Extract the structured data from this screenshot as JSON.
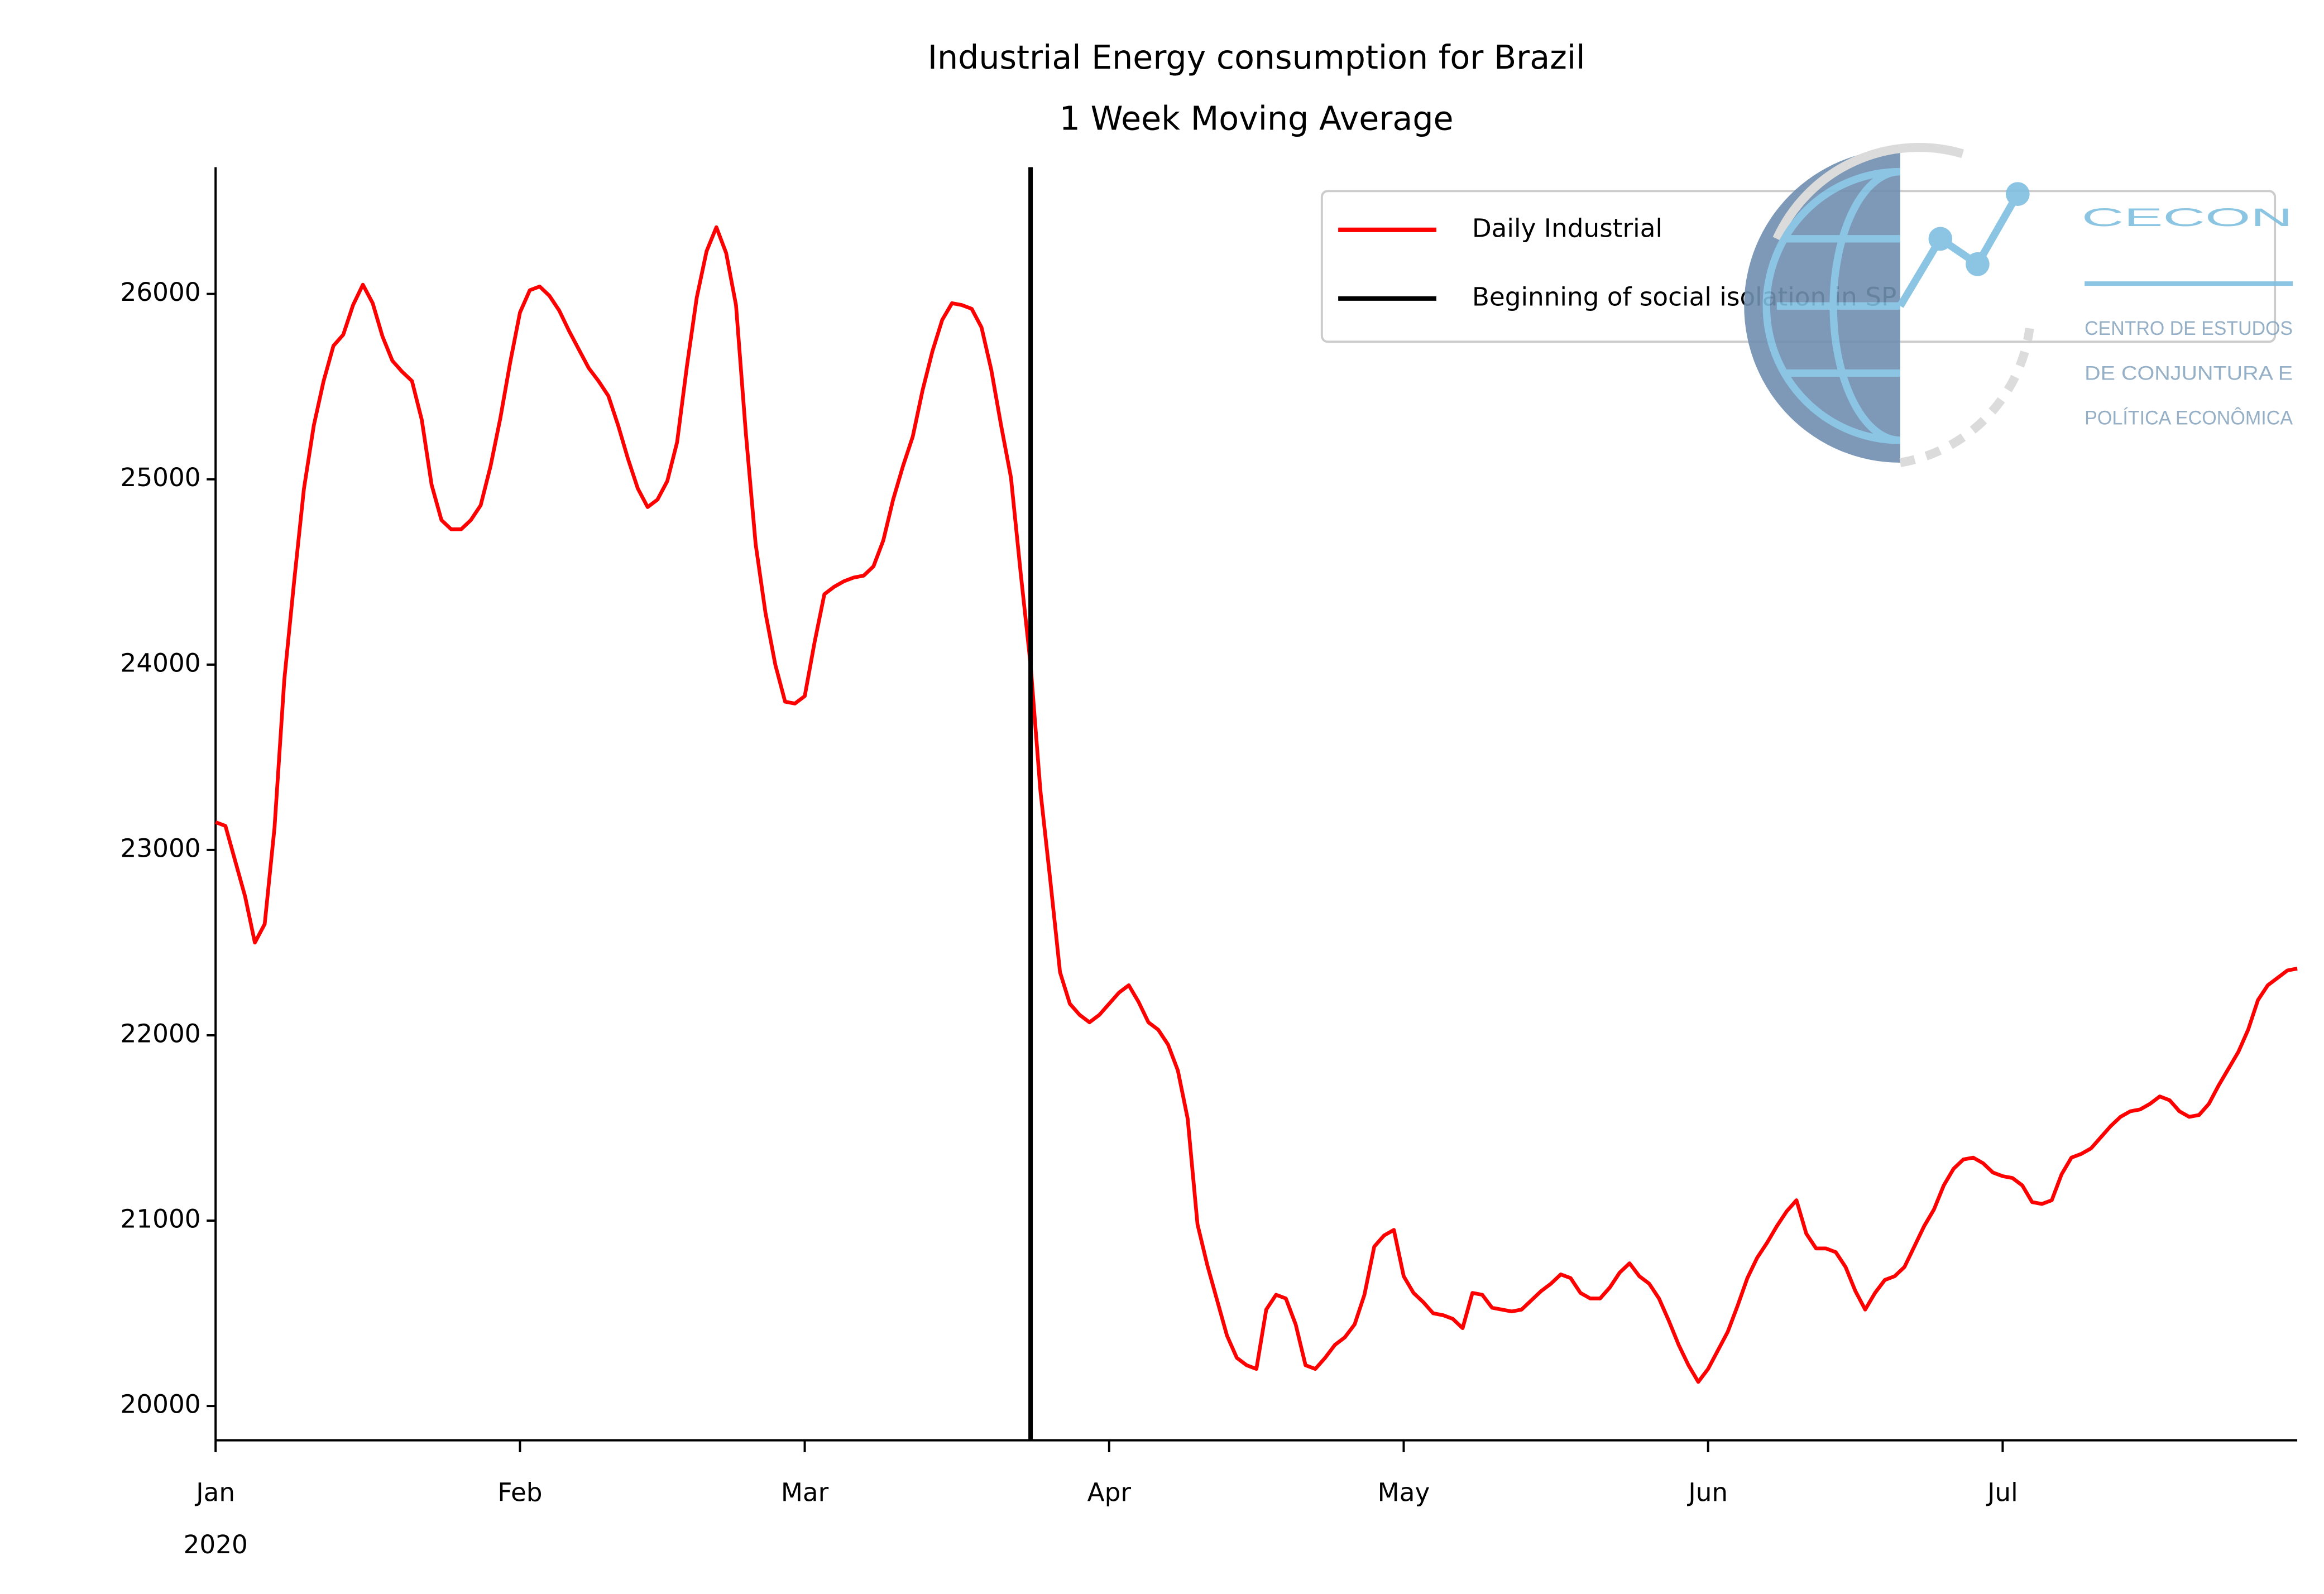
{
  "chart_data": {
    "type": "line",
    "title": "Industrial Energy consumption for Brazil",
    "subtitle": "1 Week Moving Average",
    "x": [
      0,
      1,
      2,
      3,
      4,
      5,
      6,
      7,
      8,
      9,
      10,
      11,
      12,
      13,
      14,
      15,
      16,
      17,
      18,
      19,
      20,
      21,
      22,
      23,
      24,
      25,
      26,
      27,
      28,
      29,
      30,
      31,
      32,
      33,
      34,
      35,
      36,
      37,
      38,
      39,
      40,
      41,
      42,
      43,
      44,
      45,
      46,
      47,
      48,
      49,
      50,
      51,
      52,
      53,
      54,
      55,
      56,
      57,
      58,
      59,
      60,
      61,
      62,
      63,
      64,
      65,
      66,
      67,
      68,
      69,
      70,
      71,
      72,
      73,
      74,
      75,
      76,
      77,
      78,
      79,
      80,
      81,
      82,
      83,
      84,
      85,
      86,
      87,
      88,
      89,
      90,
      91,
      92,
      93,
      94,
      95,
      96,
      97,
      98,
      99,
      100,
      101,
      102,
      103,
      104,
      105,
      106,
      107,
      108,
      109,
      110,
      111,
      112,
      113,
      114,
      115,
      116,
      117,
      118,
      119,
      120,
      121,
      122,
      123,
      124,
      125,
      126,
      127,
      128,
      129,
      130,
      131,
      132,
      133,
      134,
      135,
      136,
      137,
      138,
      139,
      140,
      141,
      142,
      143,
      144,
      145,
      146,
      147,
      148,
      149,
      150,
      151,
      152,
      153,
      154,
      155,
      156,
      157,
      158,
      159,
      160,
      161,
      162,
      163,
      164,
      165,
      166,
      167,
      168,
      169,
      170,
      171,
      172,
      173,
      174,
      175,
      176,
      177,
      178,
      179,
      180,
      181,
      182,
      183,
      184,
      185,
      186,
      187,
      188,
      189,
      190,
      191,
      192,
      193,
      194,
      195,
      196,
      197,
      198,
      199,
      200,
      201,
      202,
      203,
      204,
      205,
      206,
      207,
      208,
      209,
      210,
      211,
      212
    ],
    "series": [
      {
        "name": "Daily Industrial",
        "color": "#ff0000",
        "values": [
          23150,
          23130,
          22940,
          22750,
          22500,
          22600,
          23120,
          23920,
          24450,
          24950,
          25290,
          25530,
          25720,
          25780,
          25940,
          26050,
          25950,
          25770,
          25640,
          25580,
          25530,
          25320,
          24970,
          24780,
          24730,
          24730,
          24780,
          24860,
          25070,
          25330,
          25630,
          25900,
          26020,
          26040,
          25990,
          25910,
          25800,
          25700,
          25600,
          25530,
          25450,
          25290,
          25110,
          24950,
          24850,
          24890,
          24990,
          25200,
          25610,
          25980,
          26230,
          26360,
          26220,
          25940,
          25250,
          24650,
          24280,
          24000,
          23800,
          23790,
          23830,
          24120,
          24380,
          24420,
          24450,
          24470,
          24480,
          24530,
          24670,
          24890,
          25070,
          25230,
          25480,
          25690,
          25860,
          25950,
          25940,
          25920,
          25820,
          25590,
          25290,
          25010,
          24490,
          24000,
          23320,
          22840,
          22340,
          22170,
          22110,
          22070,
          22110,
          22170,
          22230,
          22270,
          22180,
          22070,
          22030,
          21950,
          21810,
          21550,
          20980,
          20760,
          20570,
          20380,
          20260,
          20220,
          20200,
          20520,
          20600,
          20580,
          20440,
          20220,
          20200,
          20260,
          20330,
          20370,
          20440,
          20600,
          20860,
          20920,
          20950,
          20700,
          20610,
          20560,
          20500,
          20490,
          20470,
          20420,
          20610,
          20600,
          20530,
          20520,
          20510,
          20520,
          20570,
          20620,
          20660,
          20710,
          20690,
          20610,
          20580,
          20580,
          20640,
          20720,
          20770,
          20700,
          20660,
          20580,
          20460,
          20330,
          20220,
          20130,
          20200,
          20300,
          20400,
          20540,
          20690,
          20800,
          20880,
          20970,
          21050,
          21110,
          20930,
          20850,
          20850,
          20830,
          20750,
          20620,
          20520,
          20610,
          20680,
          20700,
          20750,
          20860,
          20970,
          21060,
          21190,
          21280,
          21330,
          21340,
          21310,
          21260,
          21240,
          21230,
          21190,
          21100,
          21090,
          21110,
          21250,
          21340,
          21360,
          21390,
          21450,
          21510,
          21560,
          21590,
          21600,
          21630,
          21670,
          21650,
          21590,
          21560,
          21570,
          21630,
          21730,
          21820,
          21910,
          22030,
          22190,
          22270,
          22310,
          22350,
          22360
        ]
      }
    ],
    "vline": {
      "x": 83,
      "name": "Beginning of social isolation in SP",
      "color": "#000000"
    },
    "xlim": [
      0,
      212
    ],
    "xticks": [
      {
        "value": 0,
        "label": "Jan"
      },
      {
        "value": 31,
        "label": "Feb"
      },
      {
        "value": 60,
        "label": "Mar"
      },
      {
        "value": 91,
        "label": "Apr"
      },
      {
        "value": 121,
        "label": "May"
      },
      {
        "value": 152,
        "label": "Jun"
      },
      {
        "value": 182,
        "label": "Jul"
      }
    ],
    "x_year_label": "2020",
    "ylim": [
      19815,
      26684
    ],
    "yticks": [
      20000,
      21000,
      22000,
      23000,
      24000,
      25000,
      26000
    ],
    "legend": "upper right",
    "logo": {
      "title": "CECON",
      "lines": [
        "CENTRO DE ESTUDOS",
        "DE CONJUNTURA E",
        "POLÍTICA ECONÔMICA"
      ]
    }
  }
}
